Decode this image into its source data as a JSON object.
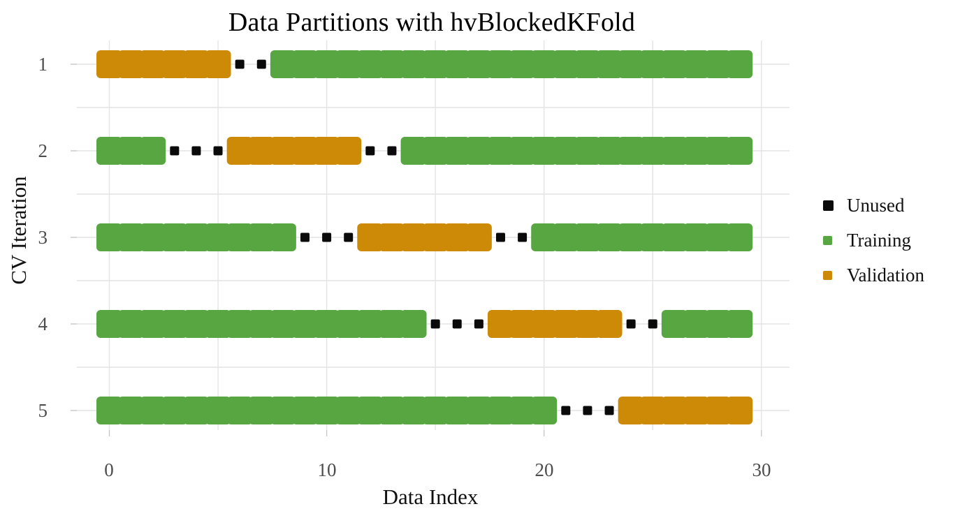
{
  "chart_data": {
    "type": "heatmap",
    "title": "Data Partitions with hvBlockedKFold",
    "xlabel": "Data Index",
    "ylabel": "CV Iteration",
    "x_tick_labels": [
      "0",
      "10",
      "20",
      "30"
    ],
    "x_ticks": [
      0,
      10,
      20,
      30
    ],
    "x_gridlines": [
      0,
      5,
      10,
      15,
      20,
      25,
      30
    ],
    "y_tick_labels": [
      "1",
      "2",
      "3",
      "4",
      "5"
    ],
    "n_points": 30,
    "index_range": [
      0,
      29
    ],
    "grid_on": true,
    "legend_position": "right",
    "legend": [
      {
        "label": "Unused",
        "color": "#0a0a0a"
      },
      {
        "label": "Training",
        "color": "#58A642"
      },
      {
        "label": "Validation",
        "color": "#CC8A06"
      }
    ],
    "colors": {
      "Training": "#58A642",
      "Validation": "#CC8A06",
      "Unused": "#0a0a0a",
      "grid": "#e4e4e4",
      "tick": "#c8c8c8",
      "tick_label": "#4d4d4d"
    },
    "folds": [
      {
        "iteration": 1,
        "segments": [
          {
            "category": "Validation",
            "start": 0,
            "end": 5
          },
          {
            "category": "Unused",
            "start": 6,
            "end": 7
          },
          {
            "category": "Training",
            "start": 8,
            "end": 29
          }
        ]
      },
      {
        "iteration": 2,
        "segments": [
          {
            "category": "Training",
            "start": 0,
            "end": 2
          },
          {
            "category": "Unused",
            "start": 3,
            "end": 5
          },
          {
            "category": "Validation",
            "start": 6,
            "end": 11
          },
          {
            "category": "Unused",
            "start": 12,
            "end": 13
          },
          {
            "category": "Training",
            "start": 14,
            "end": 29
          }
        ]
      },
      {
        "iteration": 3,
        "segments": [
          {
            "category": "Training",
            "start": 0,
            "end": 8
          },
          {
            "category": "Unused",
            "start": 9,
            "end": 11
          },
          {
            "category": "Validation",
            "start": 12,
            "end": 17
          },
          {
            "category": "Unused",
            "start": 18,
            "end": 19
          },
          {
            "category": "Training",
            "start": 20,
            "end": 29
          }
        ]
      },
      {
        "iteration": 4,
        "segments": [
          {
            "category": "Training",
            "start": 0,
            "end": 14
          },
          {
            "category": "Unused",
            "start": 15,
            "end": 17
          },
          {
            "category": "Validation",
            "start": 18,
            "end": 23
          },
          {
            "category": "Unused",
            "start": 24,
            "end": 25
          },
          {
            "category": "Training",
            "start": 26,
            "end": 29
          }
        ]
      },
      {
        "iteration": 5,
        "segments": [
          {
            "category": "Training",
            "start": 0,
            "end": 20
          },
          {
            "category": "Unused",
            "start": 21,
            "end": 23
          },
          {
            "category": "Validation",
            "start": 24,
            "end": 29
          }
        ]
      }
    ]
  }
}
